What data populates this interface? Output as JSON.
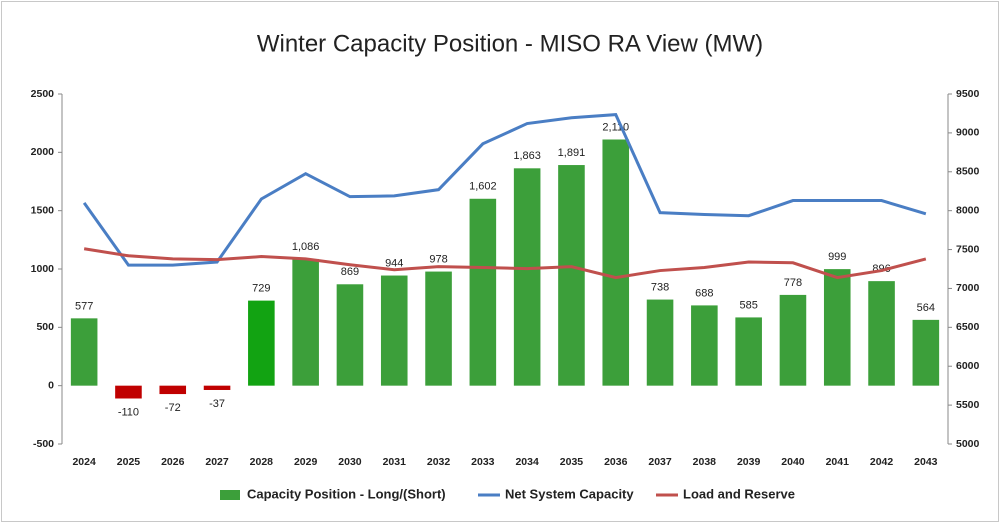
{
  "chart_data": {
    "type": "bar",
    "title": "Winter Capacity Position - MISO RA View (MW)",
    "categories": [
      "2024",
      "2025",
      "2026",
      "2027",
      "2028",
      "2029",
      "2030",
      "2031",
      "2032",
      "2033",
      "2034",
      "2035",
      "2036",
      "2037",
      "2038",
      "2039",
      "2040",
      "2041",
      "2042",
      "2043"
    ],
    "series": [
      {
        "name": "Capacity Position - Long/(Short)",
        "type": "bar",
        "color": "#3c9f3a",
        "colors": [
          "#3c9f3a",
          "#c00000",
          "#c00000",
          "#c00000",
          "#12a312",
          "#3c9f3a",
          "#3c9f3a",
          "#3c9f3a",
          "#3c9f3a",
          "#3c9f3a",
          "#3c9f3a",
          "#3c9f3a",
          "#3c9f3a",
          "#3c9f3a",
          "#3c9f3a",
          "#3c9f3a",
          "#3c9f3a",
          "#3c9f3a",
          "#3c9f3a",
          "#3c9f3a"
        ],
        "values": [
          577,
          -110,
          -72,
          -37,
          729,
          1086,
          869,
          944,
          978,
          1602,
          1863,
          1891,
          2110,
          738,
          688,
          585,
          778,
          999,
          896,
          564
        ],
        "value_labels": [
          "577",
          "-110",
          "-72",
          "-37",
          "729",
          "1,086",
          "869",
          "944",
          "978",
          "1,602",
          "1,863",
          "1,891",
          "2,110",
          "738",
          "688",
          "585",
          "778",
          "999",
          "896",
          "564"
        ]
      },
      {
        "name": "Net System Capacity",
        "type": "line",
        "axis": "y2",
        "color": "#4a7ec4",
        "values": [
          8100,
          7300,
          7300,
          7340,
          8150,
          8475,
          8180,
          8190,
          8270,
          8860,
          9120,
          9195,
          9235,
          7975,
          7950,
          7935,
          8130,
          8130,
          8130,
          7960
        ]
      },
      {
        "name": "Load and Reserve",
        "type": "line",
        "axis": "y2",
        "color": "#c0504d",
        "values": [
          7510,
          7420,
          7380,
          7370,
          7410,
          7380,
          7305,
          7240,
          7280,
          7270,
          7255,
          7280,
          7140,
          7230,
          7270,
          7340,
          7330,
          7140,
          7230,
          7380
        ]
      }
    ],
    "ylim": [
      -500,
      2500
    ],
    "yticks": [
      -500,
      0,
      500,
      1000,
      1500,
      2000,
      2500
    ],
    "y2lim": [
      5000,
      9500
    ],
    "y2ticks": [
      5000,
      5500,
      6000,
      6500,
      7000,
      7500,
      8000,
      8500,
      9000,
      9500
    ],
    "legend": "bottom"
  }
}
